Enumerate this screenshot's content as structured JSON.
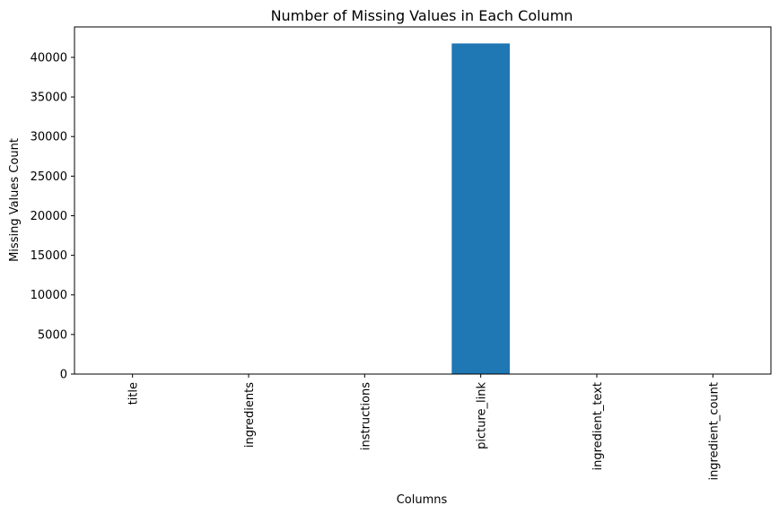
{
  "chart_data": {
    "type": "bar",
    "title": "Number of Missing Values in Each Column",
    "xlabel": "Columns",
    "ylabel": "Missing Values Count",
    "categories": [
      "title",
      "ingredients",
      "instructions",
      "picture_link",
      "ingredient_text",
      "ingredient_count"
    ],
    "values": [
      0,
      0,
      0,
      41760,
      0,
      0
    ],
    "ylim": [
      0,
      43848
    ],
    "yticks": [
      0,
      5000,
      10000,
      15000,
      20000,
      25000,
      30000,
      35000,
      40000
    ],
    "bar_color": "#1f77b4",
    "grid": false
  }
}
